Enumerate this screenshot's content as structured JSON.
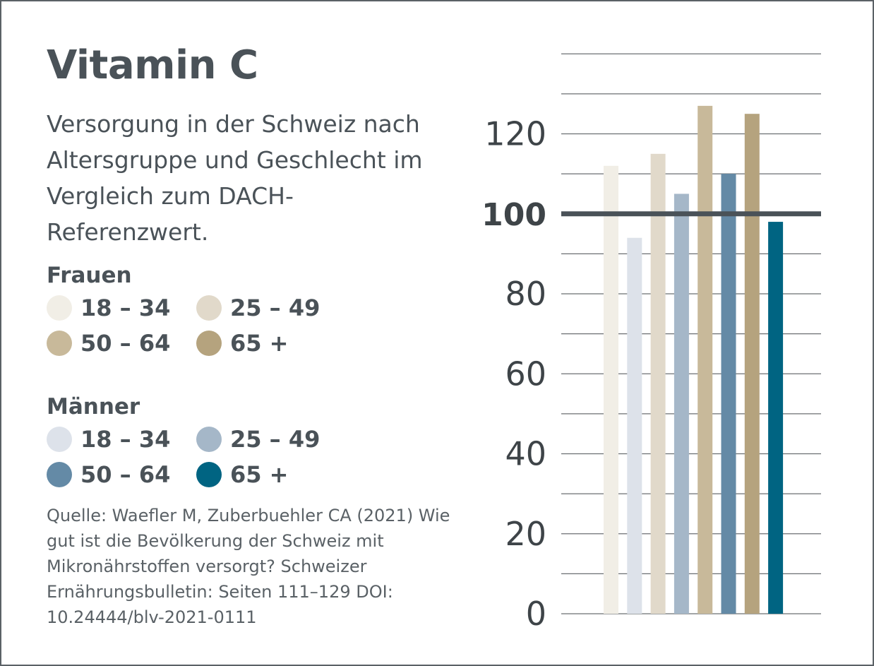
{
  "title": "Vitamin C",
  "subtitle": "Versorgung in der Schweiz nach Altersgruppe und Geschlecht im Vergleich zum DACH-Referenzwert.",
  "legend": {
    "women": {
      "title": "Frauen",
      "items": [
        {
          "label": "18 – 34",
          "color": "#f1eee6"
        },
        {
          "label": "25 – 49",
          "color": "#e1d9ca"
        },
        {
          "label": "50 – 64",
          "color": "#c8b99a"
        },
        {
          "label": "65 +",
          "color": "#b5a37e"
        }
      ]
    },
    "men": {
      "title": "Männer",
      "items": [
        {
          "label": "18 – 34",
          "color": "#dde2ea"
        },
        {
          "label": "25 – 49",
          "color": "#a5b7c8"
        },
        {
          "label": "50 – 64",
          "color": "#648aa6"
        },
        {
          "label": "65 +",
          "color": "#006482"
        }
      ]
    }
  },
  "source": "Quelle: Waefler M, Zuberbuehler CA (2021) Wie gut ist die Bevölkerung der Schweiz mit Mikronährstoffen versorgt? Schweizer Ernährungsbulletin: Seiten 111–129 DOI: 10.24444/blv-2021-0111",
  "chart_data": {
    "type": "bar",
    "title": "Vitamin C",
    "categories": [
      "Frauen 18 – 34",
      "Männer 18 – 34",
      "Frauen 25 – 49",
      "Männer 25 – 49",
      "Frauen 50 – 64",
      "Männer 50 – 64",
      "Frauen 65 +",
      "Männer 65 +"
    ],
    "values": [
      112,
      94,
      115,
      105,
      127,
      110,
      125,
      98
    ],
    "colors": [
      "#f1eee6",
      "#dde2ea",
      "#e1d9ca",
      "#a5b7c8",
      "#c8b99a",
      "#648aa6",
      "#b5a37e",
      "#006482"
    ],
    "ylim": [
      0,
      140
    ],
    "yticks": [
      "0",
      "20",
      "40",
      "60",
      "80",
      "100",
      "120"
    ],
    "reference_line": 100,
    "grid": true,
    "xlabel": "",
    "ylabel": ""
  }
}
